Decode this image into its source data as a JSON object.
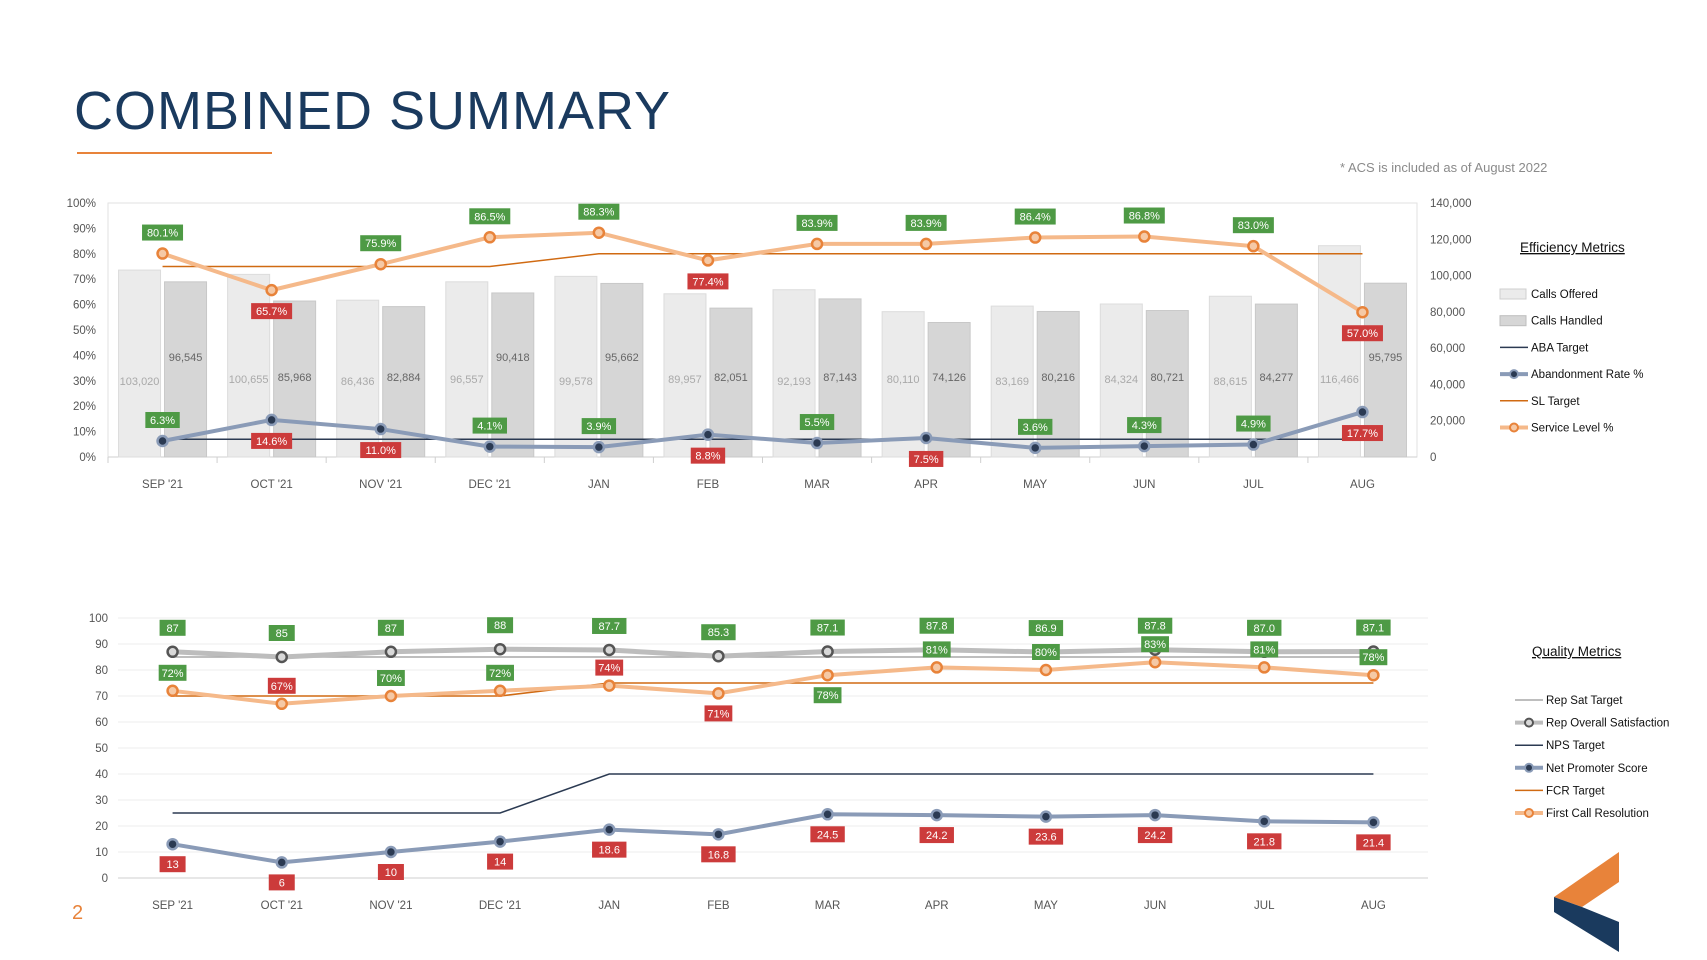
{
  "header": {
    "title": "COMBINED SUMMARY",
    "footnote": "* ACS is included as of August 2022",
    "page_number": "2"
  },
  "colors": {
    "title": "#1a3a5e",
    "accent": "#e8833a",
    "calls_offered": "#ebebeb",
    "calls_handled": "#d6d6d6",
    "aba_target": "#2b3a52",
    "abandonment": "#8a9bb7",
    "sl_target": "#d06a12",
    "service_level": "#f5b98a",
    "label_green": "#4e9a45",
    "label_red": "#cc3b3b",
    "rep_sat": "#a8a8a8"
  },
  "chart_data": [
    {
      "type": "bar",
      "title": "Efficiency Metrics",
      "categories": [
        "SEP '21",
        "OCT '21",
        "NOV '21",
        "DEC '21",
        "JAN",
        "FEB",
        "MAR",
        "APR",
        "MAY",
        "JUN",
        "JUL",
        "AUG"
      ],
      "left_axis": {
        "min": 0,
        "max": 100,
        "step": 10,
        "format": "percent",
        "ticks": [
          "0%",
          "10%",
          "20%",
          "30%",
          "40%",
          "50%",
          "60%",
          "70%",
          "80%",
          "90%",
          "100%"
        ]
      },
      "right_axis": {
        "min": 0,
        "max": 140000,
        "step": 20000,
        "ticks": [
          "0",
          "20,000",
          "40,000",
          "60,000",
          "80,000",
          "100,000",
          "120,000",
          "140,000"
        ]
      },
      "legend_position": "right",
      "series": [
        {
          "name": "Calls Offered",
          "kind": "bar",
          "axis": "right",
          "values": [
            103020,
            100655,
            86436,
            96557,
            99578,
            89957,
            92193,
            80110,
            83169,
            84324,
            88615,
            116466
          ],
          "labels": [
            "103,020",
            "100,655",
            "86,436",
            "96,557",
            "99,578",
            "89,957",
            "92,193",
            "80,110",
            "83,169",
            "84,324",
            "88,615",
            "116,466"
          ]
        },
        {
          "name": "Calls Handled",
          "kind": "bar",
          "axis": "right",
          "values": [
            96545,
            85968,
            82884,
            90418,
            95662,
            82051,
            87143,
            74126,
            80216,
            80721,
            84277,
            95795
          ],
          "labels": [
            "96,545",
            "85,968",
            "82,884",
            "90,418",
            "95,662",
            "82,051",
            "87,143",
            "74,126",
            "80,216",
            "80,721",
            "84,277",
            "95,795"
          ]
        },
        {
          "name": "ABA Target",
          "kind": "line",
          "axis": "left",
          "values": [
            7,
            7,
            7,
            7,
            7,
            7,
            7,
            7,
            7,
            7,
            7,
            7
          ]
        },
        {
          "name": "Abandonment Rate %",
          "kind": "line",
          "axis": "left",
          "values": [
            6.3,
            14.6,
            11.0,
            4.1,
            3.9,
            8.8,
            5.5,
            7.5,
            3.6,
            4.3,
            4.9,
            17.7
          ],
          "labels": [
            "6.3%",
            "14.6%",
            "11.0%",
            "4.1%",
            "3.9%",
            "8.8%",
            "5.5%",
            "7.5%",
            "3.6%",
            "4.3%",
            "4.9%",
            "17.7%"
          ]
        },
        {
          "name": "SL Target",
          "kind": "line",
          "axis": "left",
          "values": [
            75,
            75,
            75,
            75,
            80,
            80,
            80,
            80,
            80,
            80,
            80,
            80
          ]
        },
        {
          "name": "Service Level %",
          "kind": "line",
          "axis": "left",
          "values": [
            80.1,
            65.7,
            75.9,
            86.5,
            88.3,
            77.4,
            83.9,
            83.9,
            86.4,
            86.8,
            83.0,
            57.0
          ],
          "labels": [
            "80.1%",
            "65.7%",
            "75.9%",
            "86.5%",
            "88.3%",
            "77.4%",
            "83.9%",
            "83.9%",
            "86.4%",
            "86.8%",
            "83.0%",
            "57.0%"
          ]
        }
      ]
    },
    {
      "type": "line",
      "title": "Quality Metrics",
      "categories": [
        "SEP '21",
        "OCT '21",
        "NOV '21",
        "DEC '21",
        "JAN",
        "FEB",
        "MAR",
        "APR",
        "MAY",
        "JUN",
        "JUL",
        "AUG"
      ],
      "y_axis": {
        "min": 0,
        "max": 100,
        "step": 10,
        "ticks": [
          "0",
          "10",
          "20",
          "30",
          "40",
          "50",
          "60",
          "70",
          "80",
          "90",
          "100"
        ]
      },
      "legend_position": "right",
      "series": [
        {
          "name": "Rep Sat Target",
          "kind": "line",
          "values": [
            85,
            85,
            85,
            85,
            85,
            85,
            85,
            85,
            85,
            85,
            85,
            85
          ]
        },
        {
          "name": "Rep Overall Satisfaction",
          "kind": "line",
          "values": [
            87,
            85,
            87,
            88,
            87.7,
            85.3,
            87.1,
            87.8,
            86.9,
            87.8,
            87.0,
            87.1
          ],
          "labels": [
            "87",
            "85",
            "87",
            "88",
            "87.7",
            "85.3",
            "87.1",
            "87.8",
            "86.9",
            "87.8",
            "87.0",
            "87.1"
          ]
        },
        {
          "name": "NPS Target",
          "kind": "line",
          "values": [
            25,
            25,
            25,
            25,
            40,
            40,
            40,
            40,
            40,
            40,
            40,
            40
          ]
        },
        {
          "name": "Net Promoter Score",
          "kind": "line",
          "values": [
            13,
            6,
            10,
            14,
            18.6,
            16.8,
            24.5,
            24.2,
            23.6,
            24.2,
            21.8,
            21.4
          ],
          "labels": [
            "13",
            "6",
            "10",
            "14",
            "18.6",
            "16.8",
            "24.5",
            "24.2",
            "23.6",
            "24.2",
            "21.8",
            "21.4"
          ]
        },
        {
          "name": "FCR Target",
          "kind": "line",
          "values": [
            70,
            70,
            70,
            70,
            75,
            75,
            75,
            75,
            75,
            75,
            75,
            75
          ]
        },
        {
          "name": "First Call Resolution",
          "kind": "line",
          "values": [
            72,
            67,
            70,
            72,
            74,
            71,
            78,
            81,
            80,
            83,
            81,
            78
          ],
          "labels": [
            "72%",
            "67%",
            "70%",
            "72%",
            "74%",
            "71%",
            "78%",
            "81%",
            "80%",
            "83%",
            "81%",
            "78%"
          ]
        }
      ]
    }
  ]
}
